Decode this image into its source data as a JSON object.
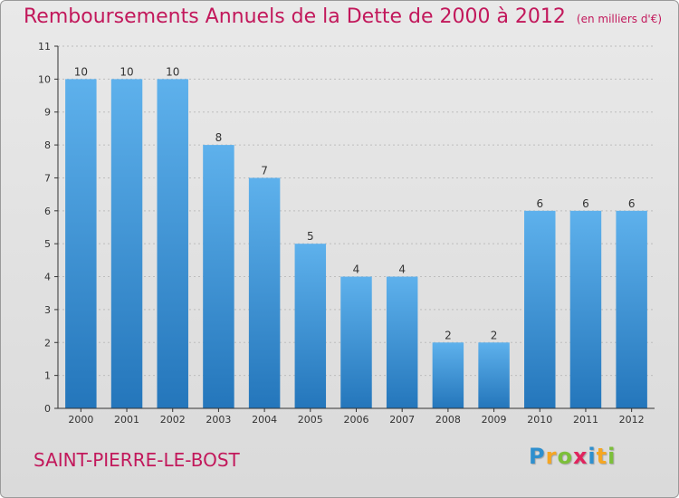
{
  "header": {
    "title": "Remboursements Annuels de la Dette de 2000 à 2012",
    "unit": "(en milliers d'€)"
  },
  "footer": {
    "commune": "SAINT-PIERRE-LE-BOST",
    "logo_letters": [
      "P",
      "r",
      "o",
      "x",
      "i",
      "t",
      "i"
    ],
    "logo_colors": [
      "#2e8fce",
      "#f5a623",
      "#7cbf3a",
      "#e0245e",
      "#2e8fce",
      "#f5a623",
      "#7cbf3a"
    ]
  },
  "colors": {
    "bar_light": "#5eb1ec",
    "bar_dark": "#2476bb",
    "axis": "#333333",
    "grid": "#bdbdbd"
  },
  "chart_data": {
    "type": "bar",
    "title": "Remboursements Annuels de la Dette de 2000 à 2012",
    "subtitle": "(en milliers d'€)",
    "xlabel": "",
    "ylabel": "",
    "categories": [
      "2000",
      "2001",
      "2002",
      "2003",
      "2004",
      "2005",
      "2006",
      "2007",
      "2008",
      "2009",
      "2010",
      "2011",
      "2012"
    ],
    "values": [
      10,
      10,
      10,
      8,
      7,
      5,
      4,
      4,
      2,
      2,
      6,
      6,
      6
    ],
    "data_labels": [
      "10",
      "10",
      "10",
      "8",
      "7",
      "5",
      "4",
      "4",
      "2",
      "2",
      "6",
      "6",
      "6"
    ],
    "ylim": [
      0,
      11
    ],
    "yticks": [
      0,
      1,
      2,
      3,
      4,
      5,
      6,
      7,
      8,
      9,
      10,
      11
    ],
    "ytick_labels": [
      "0",
      "1",
      "2",
      "3",
      "4",
      "5",
      "6",
      "7",
      "8",
      "9",
      "10",
      "11"
    ],
    "grid": true
  }
}
